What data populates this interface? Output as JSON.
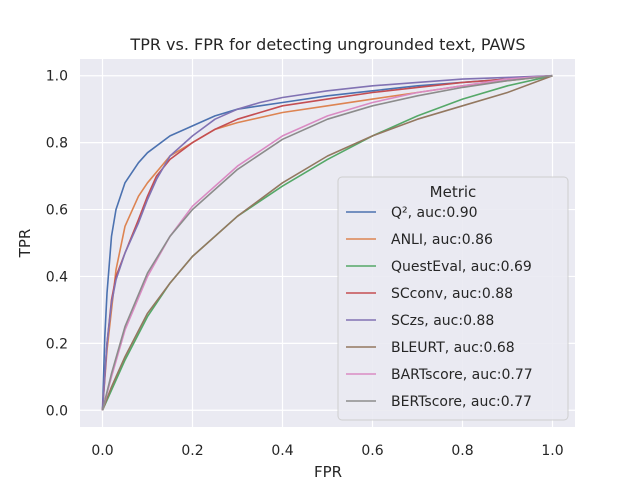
{
  "chart_data": {
    "type": "line",
    "title": "TPR vs. FPR for detecting ungrounded text, PAWS",
    "xlabel": "FPR",
    "ylabel": "TPR",
    "xlim": [
      -0.05,
      1.05
    ],
    "ylim": [
      -0.05,
      1.05
    ],
    "xticks": [
      0.0,
      0.2,
      0.4,
      0.6,
      0.8,
      1.0
    ],
    "yticks": [
      0.0,
      0.2,
      0.4,
      0.6,
      0.8,
      1.0
    ],
    "xtick_labels": [
      "0.0",
      "0.2",
      "0.4",
      "0.6",
      "0.8",
      "1.0"
    ],
    "ytick_labels": [
      "0.0",
      "0.2",
      "0.4",
      "0.6",
      "0.8",
      "1.0"
    ],
    "grid": true,
    "background": "#eaeaf2",
    "legend": {
      "title": "Metric",
      "placement": "lower-right"
    },
    "series": [
      {
        "name": "Q², auc:0.90",
        "color": "#4c72b0",
        "x": [
          0,
          0.005,
          0.01,
          0.02,
          0.03,
          0.05,
          0.08,
          0.1,
          0.15,
          0.2,
          0.25,
          0.3,
          0.35,
          0.4,
          0.5,
          0.6,
          0.7,
          0.8,
          0.9,
          1.0
        ],
        "y": [
          0,
          0.22,
          0.35,
          0.52,
          0.6,
          0.68,
          0.74,
          0.77,
          0.82,
          0.85,
          0.88,
          0.9,
          0.91,
          0.92,
          0.94,
          0.955,
          0.97,
          0.98,
          0.99,
          1.0
        ]
      },
      {
        "name": "ANLI, auc:0.86",
        "color": "#dd8452",
        "x": [
          0,
          0.01,
          0.02,
          0.03,
          0.05,
          0.08,
          0.1,
          0.15,
          0.2,
          0.25,
          0.3,
          0.4,
          0.5,
          0.6,
          0.7,
          0.8,
          0.9,
          1.0
        ],
        "y": [
          0,
          0.18,
          0.3,
          0.42,
          0.55,
          0.64,
          0.68,
          0.76,
          0.8,
          0.84,
          0.86,
          0.89,
          0.91,
          0.93,
          0.95,
          0.97,
          0.985,
          1.0
        ]
      },
      {
        "name": "QuestEval, auc:0.69",
        "color": "#55a868",
        "x": [
          0,
          0.02,
          0.05,
          0.1,
          0.15,
          0.2,
          0.3,
          0.4,
          0.5,
          0.6,
          0.7,
          0.8,
          0.9,
          1.0
        ],
        "y": [
          0,
          0.06,
          0.15,
          0.28,
          0.38,
          0.46,
          0.58,
          0.67,
          0.75,
          0.82,
          0.88,
          0.93,
          0.97,
          1.0
        ]
      },
      {
        "name": "SCconv, auc:0.88",
        "color": "#c44e52",
        "x": [
          0,
          0.01,
          0.02,
          0.03,
          0.05,
          0.08,
          0.1,
          0.12,
          0.15,
          0.2,
          0.25,
          0.3,
          0.35,
          0.4,
          0.5,
          0.6,
          0.7,
          0.8,
          0.9,
          1.0
        ],
        "y": [
          0,
          0.2,
          0.33,
          0.4,
          0.47,
          0.57,
          0.64,
          0.7,
          0.75,
          0.8,
          0.84,
          0.87,
          0.89,
          0.91,
          0.93,
          0.95,
          0.965,
          0.98,
          0.99,
          1.0
        ]
      },
      {
        "name": "SCzs, auc:0.88",
        "color": "#8172b3",
        "x": [
          0,
          0.01,
          0.02,
          0.03,
          0.05,
          0.08,
          0.1,
          0.12,
          0.15,
          0.2,
          0.25,
          0.3,
          0.35,
          0.4,
          0.5,
          0.6,
          0.7,
          0.8,
          0.9,
          1.0
        ],
        "y": [
          0,
          0.2,
          0.32,
          0.39,
          0.47,
          0.56,
          0.63,
          0.69,
          0.76,
          0.82,
          0.87,
          0.9,
          0.92,
          0.935,
          0.955,
          0.97,
          0.98,
          0.99,
          0.995,
          1.0
        ]
      },
      {
        "name": "BLEURT, auc:0.68",
        "color": "#937860",
        "x": [
          0,
          0.02,
          0.05,
          0.1,
          0.15,
          0.2,
          0.3,
          0.4,
          0.5,
          0.6,
          0.7,
          0.8,
          0.9,
          1.0
        ],
        "y": [
          0,
          0.07,
          0.16,
          0.29,
          0.38,
          0.46,
          0.58,
          0.68,
          0.76,
          0.82,
          0.87,
          0.91,
          0.95,
          1.0
        ]
      },
      {
        "name": "BARTscore, auc:0.77",
        "color": "#da8bc3",
        "x": [
          0,
          0.02,
          0.05,
          0.1,
          0.15,
          0.2,
          0.3,
          0.4,
          0.5,
          0.6,
          0.7,
          0.8,
          0.9,
          1.0
        ],
        "y": [
          0,
          0.1,
          0.24,
          0.4,
          0.52,
          0.61,
          0.73,
          0.82,
          0.88,
          0.92,
          0.95,
          0.97,
          0.99,
          1.0
        ]
      },
      {
        "name": "BERTscore, auc:0.77",
        "color": "#8c8c8c",
        "x": [
          0,
          0.02,
          0.05,
          0.1,
          0.15,
          0.2,
          0.3,
          0.4,
          0.5,
          0.6,
          0.7,
          0.8,
          0.9,
          1.0
        ],
        "y": [
          0,
          0.11,
          0.25,
          0.41,
          0.52,
          0.6,
          0.72,
          0.81,
          0.87,
          0.91,
          0.94,
          0.965,
          0.985,
          1.0
        ]
      }
    ]
  }
}
